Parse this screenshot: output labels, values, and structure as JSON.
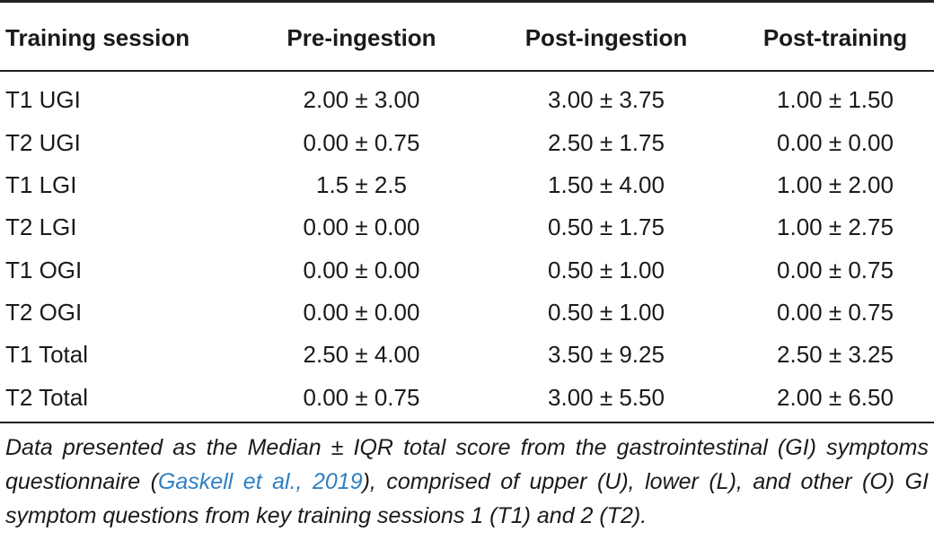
{
  "table": {
    "headers": [
      "Training session",
      "Pre-ingestion",
      "Post-ingestion",
      "Post-training"
    ],
    "rows": [
      [
        "T1 UGI",
        "2.00 ± 3.00",
        "3.00 ± 3.75",
        "1.00 ± 1.50"
      ],
      [
        "T2 UGI",
        "0.00 ± 0.75",
        "2.50 ± 1.75",
        "0.00 ± 0.00"
      ],
      [
        "T1 LGI",
        "1.5 ± 2.5",
        "1.50 ± 4.00",
        "1.00 ± 2.00"
      ],
      [
        "T2 LGI",
        "0.00 ± 0.00",
        "0.50 ± 1.75",
        "1.00 ± 2.75"
      ],
      [
        "T1 OGI",
        "0.00 ± 0.00",
        "0.50 ± 1.00",
        "0.00 ± 0.75"
      ],
      [
        "T2 OGI",
        "0.00 ± 0.00",
        "0.50 ± 1.00",
        "0.00 ± 0.75"
      ],
      [
        "T1 Total",
        "2.50 ± 4.00",
        "3.50 ± 9.25",
        "2.50 ± 3.25"
      ],
      [
        "T2 Total",
        "0.00 ± 0.75",
        "3.00 ± 5.50",
        "2.00 ± 6.50"
      ]
    ]
  },
  "footnote": {
    "before": "Data presented as the Median ± IQR total score from the gastrointestinal (GI) symptoms questionnaire (",
    "citation": "Gaskell et al., 2019",
    "after": "), comprised of upper (U), lower (L), and other (O) GI symptom questions from key training sessions 1 (T1) and 2 (T2)."
  },
  "colors": {
    "rule": "#231f20",
    "text": "#1a1a1a",
    "citation_link": "#2f7fc1"
  }
}
